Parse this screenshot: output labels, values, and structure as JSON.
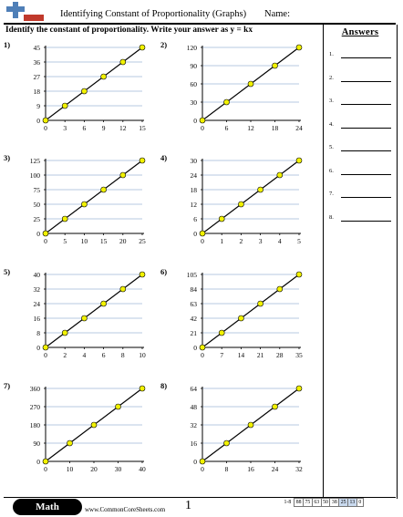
{
  "header": {
    "title": "Identifying Constant of Proportionality (Graphs)",
    "name_label": "Name:"
  },
  "instructions": "Identify the constant of proportionality. Write your answer as y = kx",
  "answer_key": {
    "title": "Answers",
    "lines": [
      "1.",
      "2.",
      "3.",
      "4.",
      "5.",
      "6.",
      "7.",
      "8."
    ]
  },
  "problems": [
    {
      "label": "1)",
      "xticks": [
        "0",
        "3",
        "6",
        "9",
        "12",
        "15"
      ],
      "yticks": [
        "0",
        "9",
        "18",
        "27",
        "36",
        "45"
      ],
      "xmax": 15,
      "ymax": 45,
      "points": [
        [
          0,
          0
        ],
        [
          3,
          9
        ],
        [
          6,
          18
        ],
        [
          9,
          27
        ],
        [
          12,
          36
        ],
        [
          15,
          45
        ]
      ]
    },
    {
      "label": "2)",
      "xticks": [
        "0",
        "6",
        "12",
        "18",
        "24"
      ],
      "yticks": [
        "0",
        "30",
        "60",
        "90",
        "120"
      ],
      "xmax": 24,
      "ymax": 120,
      "points": [
        [
          0,
          0
        ],
        [
          6,
          30
        ],
        [
          12,
          60
        ],
        [
          18,
          90
        ],
        [
          24,
          120
        ]
      ]
    },
    {
      "label": "3)",
      "xticks": [
        "0",
        "5",
        "10",
        "15",
        "20",
        "25"
      ],
      "yticks": [
        "0",
        "25",
        "50",
        "75",
        "100",
        "125"
      ],
      "xmax": 25,
      "ymax": 125,
      "points": [
        [
          0,
          0
        ],
        [
          5,
          25
        ],
        [
          10,
          50
        ],
        [
          15,
          75
        ],
        [
          20,
          100
        ],
        [
          25,
          125
        ]
      ]
    },
    {
      "label": "4)",
      "xticks": [
        "0",
        "1",
        "2",
        "3",
        "4",
        "5"
      ],
      "yticks": [
        "0",
        "6",
        "12",
        "18",
        "24",
        "30"
      ],
      "xmax": 5,
      "ymax": 30,
      "points": [
        [
          0,
          0
        ],
        [
          1,
          6
        ],
        [
          2,
          12
        ],
        [
          3,
          18
        ],
        [
          4,
          24
        ],
        [
          5,
          30
        ]
      ]
    },
    {
      "label": "5)",
      "xticks": [
        "0",
        "2",
        "4",
        "6",
        "8",
        "10"
      ],
      "yticks": [
        "0",
        "8",
        "16",
        "24",
        "32",
        "40"
      ],
      "xmax": 10,
      "ymax": 40,
      "points": [
        [
          0,
          0
        ],
        [
          2,
          8
        ],
        [
          4,
          16
        ],
        [
          6,
          24
        ],
        [
          8,
          32
        ],
        [
          10,
          40
        ]
      ]
    },
    {
      "label": "6)",
      "xticks": [
        "0",
        "7",
        "14",
        "21",
        "28",
        "35"
      ],
      "yticks": [
        "0",
        "21",
        "42",
        "63",
        "84",
        "105"
      ],
      "xmax": 35,
      "ymax": 105,
      "points": [
        [
          0,
          0
        ],
        [
          7,
          21
        ],
        [
          14,
          42
        ],
        [
          21,
          63
        ],
        [
          28,
          84
        ],
        [
          35,
          105
        ]
      ]
    },
    {
      "label": "7)",
      "xticks": [
        "0",
        "10",
        "20",
        "30",
        "40"
      ],
      "yticks": [
        "0",
        "90",
        "180",
        "270",
        "360"
      ],
      "xmax": 40,
      "ymax": 360,
      "points": [
        [
          0,
          0
        ],
        [
          10,
          90
        ],
        [
          20,
          180
        ],
        [
          30,
          270
        ],
        [
          40,
          360
        ]
      ]
    },
    {
      "label": "8)",
      "xticks": [
        "0",
        "8",
        "16",
        "24",
        "32"
      ],
      "yticks": [
        "0",
        "16",
        "32",
        "48",
        "64"
      ],
      "xmax": 32,
      "ymax": 64,
      "points": [
        [
          0,
          0
        ],
        [
          8,
          16
        ],
        [
          16,
          32
        ],
        [
          24,
          48
        ],
        [
          32,
          64
        ]
      ]
    }
  ],
  "colors": {
    "gridline": "#9fb6d6",
    "point_fill": "#f2f200",
    "line": "#000000",
    "score_highlight": "#c9d9ee"
  },
  "footer": {
    "badge": "Math",
    "site": "www.CommonCoreSheets.com",
    "page_number": "1",
    "score_range": "1-8",
    "scores": [
      "88",
      "75",
      "63",
      "50",
      "38",
      "25",
      "13",
      "0"
    ]
  }
}
